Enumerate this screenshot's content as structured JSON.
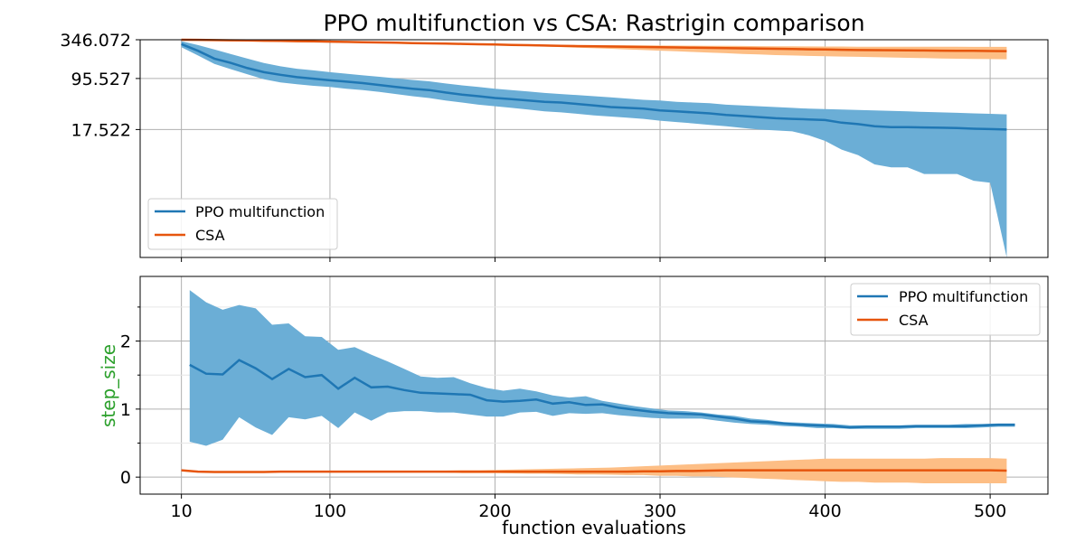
{
  "title": "PPO multifunction vs CSA: Rastrigin comparison",
  "xlabel": "function evaluations",
  "x_ticks": [
    "10",
    "100",
    "200",
    "300",
    "400",
    "500"
  ],
  "colors": {
    "ppo_line": "#1f77b4",
    "ppo_band": "#6baed6",
    "csa_line": "#e6550d",
    "csa_band": "#fdbe85",
    "ylabel_color": "#2ca02c",
    "grid": "#b0b0b0"
  },
  "chart_data": [
    {
      "type": "line",
      "title": "PPO multifunction vs CSA: Rastrigin comparison",
      "xlabel": "",
      "ylabel": "",
      "yscale": "log",
      "xlim": [
        -15,
        535
      ],
      "ylim": [
        0.25,
        346.072
      ],
      "y_ticks": [
        17.522,
        95.527,
        346.072
      ],
      "y_tick_labels": [
        "17.522",
        "95.527",
        "346.072"
      ],
      "grid": true,
      "legend": "lower-left",
      "x": [
        10,
        20,
        30,
        40,
        50,
        60,
        70,
        80,
        90,
        100,
        110,
        120,
        130,
        140,
        150,
        160,
        170,
        180,
        190,
        200,
        210,
        220,
        230,
        240,
        250,
        260,
        270,
        280,
        290,
        300,
        310,
        320,
        330,
        340,
        350,
        360,
        370,
        380,
        390,
        400,
        410,
        420,
        430,
        440,
        450,
        460,
        470,
        480,
        490,
        500,
        510
      ],
      "series": [
        {
          "name": "PPO multifunction",
          "mean": [
            300,
            240,
            185,
            160,
            135,
            118,
            108,
            100,
            95,
            90,
            86,
            82,
            77,
            72,
            68,
            65,
            60,
            56,
            53,
            50,
            48,
            46,
            44,
            43,
            41,
            39,
            37,
            36,
            35,
            33,
            32,
            31,
            30,
            28.5,
            27.5,
            26.5,
            25.5,
            25,
            24.5,
            24,
            22,
            21,
            19.5,
            19,
            19,
            18.8,
            18.6,
            18.4,
            18,
            17.8,
            17.5
          ],
          "lower": [
            270,
            205,
            155,
            130,
            110,
            93,
            84,
            79,
            75,
            72,
            68,
            65,
            61,
            57,
            53,
            50,
            46,
            43,
            40,
            38,
            36,
            34,
            32,
            31,
            29.5,
            28,
            27,
            26,
            25,
            23.5,
            22.5,
            21.5,
            20.5,
            19.5,
            18.5,
            17.5,
            17,
            16.5,
            14.5,
            12,
            9,
            7.5,
            5.5,
            5,
            5,
            4,
            4,
            4,
            3.2,
            3,
            0.25
          ],
          "upper": [
            330,
            290,
            250,
            215,
            185,
            160,
            143,
            132,
            125,
            118,
            112,
            106,
            101,
            96,
            91,
            87,
            81,
            76,
            72,
            68,
            65,
            62,
            59,
            57,
            55,
            53,
            51,
            49,
            47,
            46,
            44,
            43,
            42,
            40,
            39,
            38,
            37,
            36,
            35,
            34.5,
            34,
            33.5,
            33,
            32.5,
            32,
            31.5,
            31,
            30.5,
            30,
            29.5,
            29
          ]
        },
        {
          "name": "CSA",
          "mean": [
            346,
            345,
            342,
            340,
            338,
            335,
            333,
            330,
            328,
            325,
            322,
            319,
            316,
            313,
            310,
            307,
            304,
            301,
            298,
            295,
            292,
            289,
            286,
            283,
            280,
            278,
            276,
            274,
            272,
            270,
            268,
            266,
            264,
            262,
            260,
            258,
            256,
            254,
            252,
            250,
            248,
            246,
            245,
            244,
            243,
            242,
            241,
            240,
            239,
            238,
            237
          ],
          "lower": [
            346,
            345,
            342,
            340,
            338,
            335,
            333,
            330,
            328,
            325,
            322,
            319,
            316,
            313,
            310,
            307,
            303,
            299,
            295,
            290,
            286,
            281,
            276,
            271,
            266,
            261,
            256,
            251,
            246,
            241,
            236,
            231,
            226,
            221,
            216,
            212,
            208,
            205,
            202,
            200,
            198,
            196,
            194,
            192,
            190,
            188,
            186,
            184,
            183,
            182,
            181
          ],
          "upper": [
            346,
            345,
            342,
            340,
            338,
            335,
            333,
            330,
            328,
            325,
            322,
            319,
            316,
            313,
            310,
            307,
            305,
            303,
            301,
            300,
            298,
            296,
            294,
            292,
            291,
            290,
            289,
            288,
            287,
            286,
            285,
            284,
            283,
            282,
            281,
            280,
            279,
            278,
            277,
            276,
            276,
            275,
            275,
            275,
            274,
            274,
            274,
            274,
            273,
            273,
            273
          ]
        }
      ]
    },
    {
      "type": "line",
      "title": "",
      "xlabel": "function evaluations",
      "ylabel": "step_size",
      "xlim": [
        -15,
        535
      ],
      "ylim": [
        -0.25,
        2.95
      ],
      "y_ticks": [
        0,
        1,
        2
      ],
      "y_tick_labels": [
        "0",
        "1",
        "2"
      ],
      "grid": true,
      "legend": "upper-right",
      "series": [
        {
          "name": "PPO multifunction",
          "x": [
            15,
            25,
            35,
            45,
            55,
            65,
            75,
            85,
            95,
            105,
            115,
            125,
            135,
            145,
            155,
            165,
            175,
            185,
            195,
            205,
            215,
            225,
            235,
            245,
            255,
            265,
            275,
            285,
            295,
            305,
            315,
            325,
            335,
            345,
            355,
            365,
            375,
            385,
            395,
            405,
            415,
            425,
            435,
            445,
            455,
            465,
            475,
            485,
            495,
            505,
            515
          ],
          "mean": [
            1.65,
            1.52,
            1.51,
            1.72,
            1.6,
            1.44,
            1.59,
            1.47,
            1.5,
            1.3,
            1.46,
            1.32,
            1.33,
            1.28,
            1.24,
            1.23,
            1.22,
            1.21,
            1.13,
            1.11,
            1.12,
            1.14,
            1.08,
            1.1,
            1.06,
            1.07,
            1.02,
            0.99,
            0.96,
            0.94,
            0.93,
            0.92,
            0.89,
            0.86,
            0.82,
            0.81,
            0.79,
            0.77,
            0.76,
            0.75,
            0.73,
            0.74,
            0.74,
            0.74,
            0.75,
            0.75,
            0.75,
            0.75,
            0.76,
            0.77,
            0.77
          ],
          "lower": [
            0.52,
            0.46,
            0.55,
            0.88,
            0.73,
            0.62,
            0.88,
            0.85,
            0.9,
            0.72,
            0.95,
            0.83,
            0.95,
            0.97,
            0.97,
            0.95,
            0.95,
            0.92,
            0.89,
            0.89,
            0.95,
            0.96,
            0.9,
            0.94,
            0.93,
            0.94,
            0.91,
            0.89,
            0.87,
            0.86,
            0.86,
            0.86,
            0.83,
            0.8,
            0.78,
            0.77,
            0.75,
            0.74,
            0.72,
            0.72,
            0.71,
            0.71,
            0.71,
            0.71,
            0.72,
            0.72,
            0.72,
            0.72,
            0.73,
            0.74,
            0.74
          ],
          "upper": [
            2.75,
            2.57,
            2.46,
            2.53,
            2.48,
            2.24,
            2.26,
            2.07,
            2.06,
            1.87,
            1.91,
            1.8,
            1.7,
            1.59,
            1.48,
            1.46,
            1.47,
            1.38,
            1.31,
            1.27,
            1.3,
            1.26,
            1.2,
            1.17,
            1.19,
            1.12,
            1.08,
            1.04,
            1.01,
            0.98,
            0.97,
            0.95,
            0.92,
            0.9,
            0.86,
            0.84,
            0.81,
            0.8,
            0.79,
            0.78,
            0.76,
            0.76,
            0.76,
            0.76,
            0.77,
            0.77,
            0.77,
            0.78,
            0.78,
            0.79,
            0.79
          ]
        },
        {
          "name": "CSA",
          "x": [
            10,
            20,
            30,
            40,
            50,
            60,
            70,
            80,
            90,
            100,
            110,
            120,
            130,
            140,
            150,
            160,
            170,
            180,
            190,
            200,
            210,
            220,
            230,
            240,
            250,
            260,
            270,
            280,
            290,
            300,
            310,
            320,
            330,
            340,
            350,
            360,
            370,
            380,
            390,
            400,
            410,
            420,
            430,
            440,
            450,
            460,
            470,
            480,
            490,
            500,
            510
          ],
          "mean": [
            0.1,
            0.08,
            0.075,
            0.075,
            0.075,
            0.075,
            0.08,
            0.08,
            0.08,
            0.08,
            0.08,
            0.08,
            0.08,
            0.08,
            0.08,
            0.08,
            0.08,
            0.08,
            0.08,
            0.08,
            0.08,
            0.08,
            0.08,
            0.08,
            0.08,
            0.08,
            0.08,
            0.08,
            0.085,
            0.085,
            0.09,
            0.09,
            0.095,
            0.1,
            0.1,
            0.1,
            0.1,
            0.1,
            0.1,
            0.1,
            0.1,
            0.1,
            0.1,
            0.1,
            0.1,
            0.1,
            0.1,
            0.1,
            0.1,
            0.1,
            0.095
          ],
          "lower": [
            0.1,
            0.08,
            0.075,
            0.075,
            0.075,
            0.075,
            0.075,
            0.075,
            0.075,
            0.075,
            0.075,
            0.075,
            0.075,
            0.075,
            0.07,
            0.07,
            0.065,
            0.06,
            0.06,
            0.06,
            0.055,
            0.05,
            0.05,
            0.045,
            0.04,
            0.04,
            0.035,
            0.03,
            0.03,
            0.02,
            0.02,
            0.01,
            0.01,
            0.0,
            -0.01,
            -0.02,
            -0.03,
            -0.04,
            -0.05,
            -0.06,
            -0.07,
            -0.07,
            -0.08,
            -0.08,
            -0.08,
            -0.09,
            -0.09,
            -0.09,
            -0.09,
            -0.09,
            -0.09
          ],
          "upper": [
            0.1,
            0.085,
            0.08,
            0.08,
            0.08,
            0.08,
            0.085,
            0.085,
            0.085,
            0.085,
            0.09,
            0.09,
            0.09,
            0.09,
            0.09,
            0.095,
            0.095,
            0.1,
            0.1,
            0.105,
            0.11,
            0.115,
            0.12,
            0.125,
            0.13,
            0.135,
            0.14,
            0.15,
            0.16,
            0.17,
            0.18,
            0.19,
            0.2,
            0.21,
            0.22,
            0.23,
            0.24,
            0.25,
            0.26,
            0.27,
            0.27,
            0.27,
            0.27,
            0.27,
            0.27,
            0.27,
            0.28,
            0.28,
            0.28,
            0.28,
            0.27
          ]
        }
      ]
    }
  ]
}
